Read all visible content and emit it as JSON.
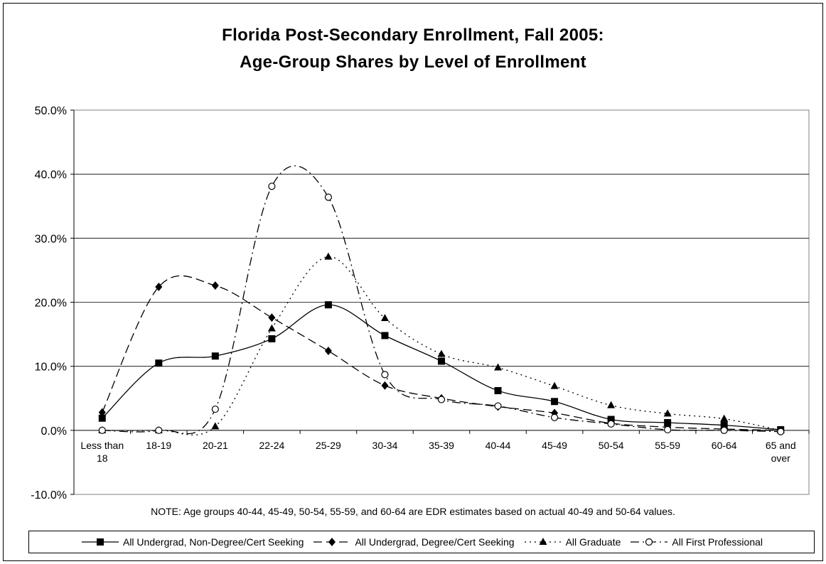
{
  "chart_data": {
    "type": "line",
    "title_line1": "Florida Post-Secondary Enrollment, Fall 2005:",
    "title_line2": "Age-Group Shares by Level of Enrollment",
    "categories": [
      "Less than 18",
      "18-19",
      "20-21",
      "22-24",
      "25-29",
      "30-34",
      "35-39",
      "40-44",
      "45-49",
      "50-54",
      "55-59",
      "60-64",
      "65 and over"
    ],
    "category_labels": [
      [
        "Less than",
        "18"
      ],
      [
        "18-19"
      ],
      [
        "20-21"
      ],
      [
        "22-24"
      ],
      [
        "25-29"
      ],
      [
        "30-34"
      ],
      [
        "35-39"
      ],
      [
        "40-44"
      ],
      [
        "45-49"
      ],
      [
        "50-54"
      ],
      [
        "55-59"
      ],
      [
        "60-64"
      ],
      [
        "65 and",
        "over"
      ]
    ],
    "y_ticks": [
      "50.0%",
      "40.0%",
      "30.0%",
      "20.0%",
      "10.0%",
      "0.0%",
      "-10.0%"
    ],
    "ylim": [
      -10,
      50
    ],
    "grid": true,
    "legend_position": "bottom",
    "note": "NOTE:  Age groups 40-44, 45-49, 50-54, 55-59, and 60-64 are EDR estimates based on actual 40-49 and 50-64 values.",
    "series": [
      {
        "name": "All Undergrad, Non-Degree/Cert Seeking",
        "marker": "square",
        "dash": "solid",
        "color": "#000000",
        "values": [
          1.9,
          10.5,
          11.6,
          14.3,
          19.6,
          14.8,
          10.8,
          6.2,
          4.5,
          1.7,
          1.2,
          0.8,
          0.1
        ]
      },
      {
        "name": "All Undergrad, Degree/Cert Seeking",
        "marker": "diamond",
        "dash": "dashed",
        "color": "#000000",
        "values": [
          2.8,
          22.4,
          22.6,
          17.6,
          12.4,
          7.0,
          5.0,
          3.7,
          2.7,
          1.1,
          0.5,
          0.2,
          0.0
        ]
      },
      {
        "name": "All Graduate",
        "marker": "triangle",
        "dash": "dotted",
        "color": "#000000",
        "values": [
          0.0,
          0.0,
          0.6,
          15.9,
          27.1,
          17.5,
          11.9,
          9.8,
          6.9,
          3.9,
          2.6,
          1.8,
          0.0
        ]
      },
      {
        "name": "All First Professional",
        "marker": "circle",
        "dash": "dashdot",
        "color": "#000000",
        "values": [
          0.0,
          0.0,
          3.3,
          38.1,
          36.4,
          8.7,
          4.8,
          3.8,
          2.0,
          1.0,
          0.1,
          0.0,
          -0.2
        ]
      }
    ]
  }
}
